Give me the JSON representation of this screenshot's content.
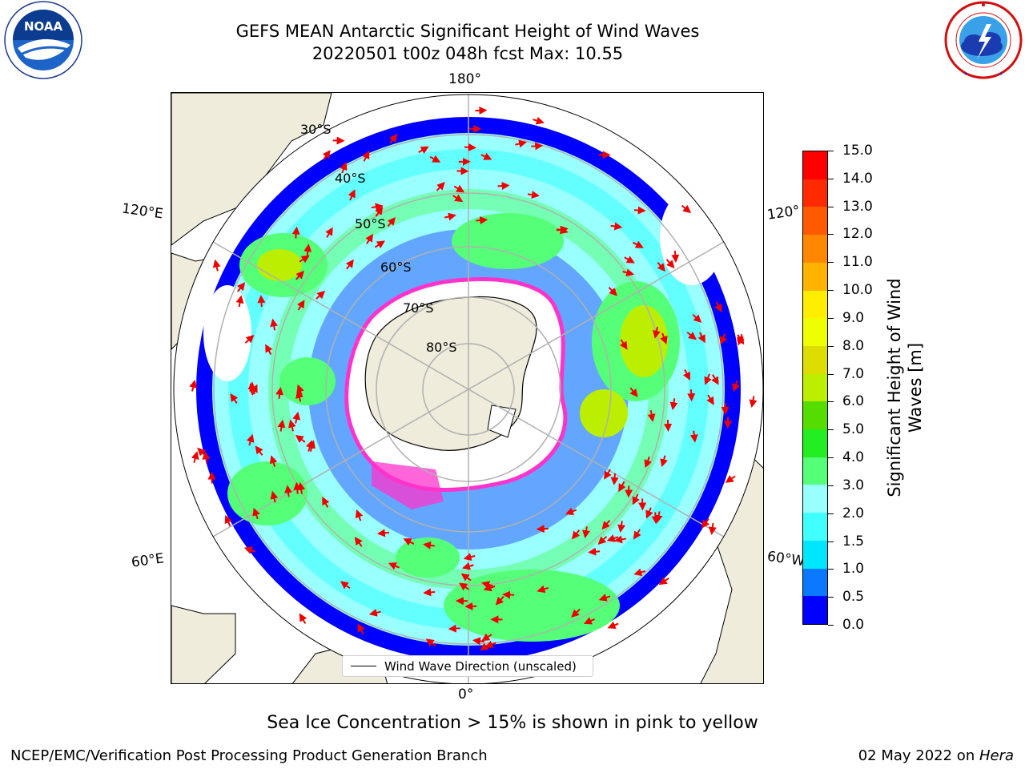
{
  "title": {
    "line1": "GEFS MEAN Antarctic Significant Height of Wind Waves",
    "line2": "20220501 t00z 048h fcst   Max: 10.55"
  },
  "logos": {
    "left": {
      "text": "NOAA",
      "ring_text": "NATIONAL OCEANIC AND ATMOSPHERIC ADMINISTRATION · U.S. DEPARTMENT OF COMMERCE",
      "icon": "noaa-logo"
    },
    "right": {
      "ring_text": "NATIONAL WEATHER SERVICE",
      "icon": "nws-logo"
    }
  },
  "map": {
    "projection": "south-polar-stereographic",
    "longitude_labels": {
      "top": "180°",
      "upper_left": "120°E",
      "upper_right": "120°",
      "lower_left": "60°E",
      "lower_right": "60°W",
      "bottom": "0°"
    },
    "latitude_labels": [
      "30°S",
      "40°S",
      "50°S",
      "60°S",
      "70°S",
      "80°S"
    ],
    "colors": {
      "land": "#efecdc",
      "ice_edge": "#ff33cc",
      "arrows": "#ee0000",
      "grid": "#b0b0b0"
    },
    "arrow_icon": "red-arrow-icon"
  },
  "legend": {
    "label": "Wind Wave Direction (unscaled)"
  },
  "colorbar": {
    "label": "Significant Height of Wind Waves [m]",
    "ticks": [
      "0.0",
      "0.5",
      "1.0",
      "1.5",
      "2.0",
      "3.0",
      "4.0",
      "5.0",
      "6.0",
      "7.0",
      "8.0",
      "9.0",
      "10.0",
      "11.0",
      "12.0",
      "13.0",
      "14.0",
      "15.0"
    ],
    "colors": [
      "#0000ff",
      "#0a78ff",
      "#00e6ff",
      "#40ffff",
      "#99ffff",
      "#55ff77",
      "#22ee22",
      "#55dd00",
      "#bbee00",
      "#dddd00",
      "#eeff00",
      "#ffee00",
      "#ffb300",
      "#ff8800",
      "#ff5a00",
      "#ff2a00",
      "#ff0000"
    ]
  },
  "notes": {
    "sea_ice": "Sea Ice Concentration > 15% is shown in pink to yellow"
  },
  "footer": {
    "left": "NCEP/EMC/Verification Post Processing Product Generation Branch",
    "right_prefix": "02 May 2022 on ",
    "right_host": "Hera"
  }
}
